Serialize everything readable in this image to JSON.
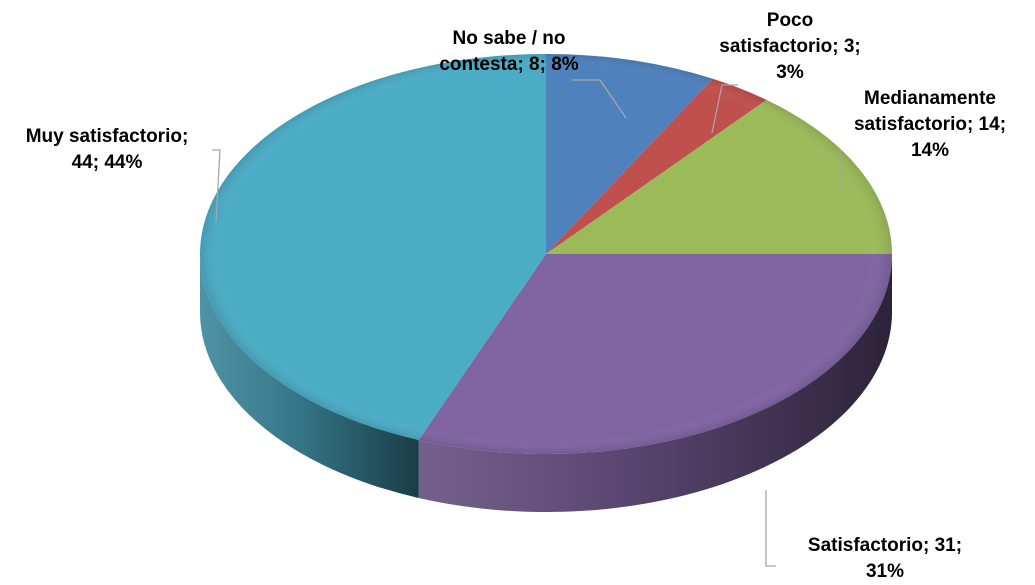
{
  "chart_data": {
    "type": "pie",
    "style": "3d",
    "categories": [
      "No sabe / no contesta",
      "Poco satisfactorio",
      "Medianamente satisfactorio",
      "Satisfactorio",
      "Muy satisfactorio"
    ],
    "values": [
      8,
      3,
      14,
      31,
      44
    ],
    "percents": [
      "8%",
      "3%",
      "14%",
      "31%",
      "44%"
    ],
    "colors": [
      "#4f81bd",
      "#c0504d",
      "#9bbb59",
      "#8064a2",
      "#4bacc6"
    ],
    "data_labels": [
      {
        "lines": [
          "No sabe / no",
          "contesta; 8; 8%"
        ]
      },
      {
        "lines": [
          "Poco",
          "satisfactorio; 3;",
          "3%"
        ]
      },
      {
        "lines": [
          "Medianamente",
          "satisfactorio; 14;",
          "14%"
        ]
      },
      {
        "lines": [
          "Satisfactorio; 31;",
          "31%"
        ]
      },
      {
        "lines": [
          "Muy satisfactorio;",
          "44; 44%"
        ]
      }
    ]
  }
}
